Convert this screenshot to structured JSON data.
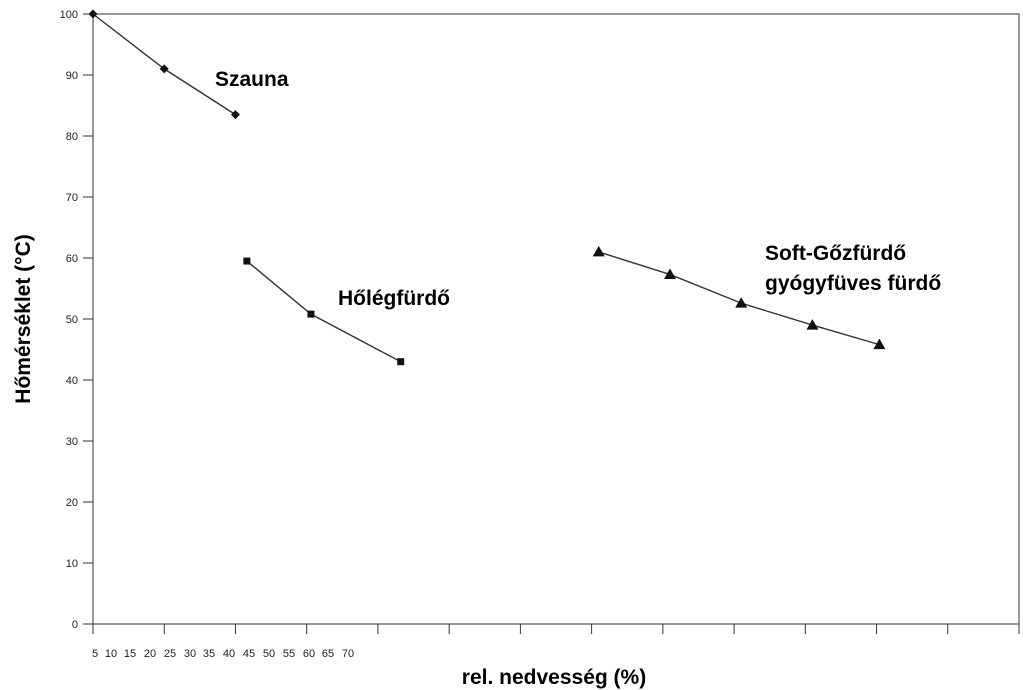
{
  "chart_data": {
    "type": "line",
    "title": "",
    "xlabel": "rel. nedvesség (%)",
    "ylabel": "Hőmérséklet (°C)",
    "xlim": [
      5,
      70
    ],
    "ylim": [
      0,
      100
    ],
    "y_ticks": [
      0,
      10,
      20,
      30,
      40,
      50,
      60,
      70,
      80,
      90,
      100
    ],
    "x_tick_labels": [
      "5",
      "10",
      "15",
      "20",
      "25",
      "30",
      "35",
      "40",
      "45",
      "50",
      "55",
      "60",
      "65",
      "70"
    ],
    "grid": false,
    "legend": "none",
    "series": [
      {
        "name": "Szauna",
        "label_lines": [
          "Szauna"
        ],
        "marker": "diamond",
        "points": [
          [
            5,
            100
          ],
          [
            10,
            91
          ],
          [
            15,
            83.5
          ]
        ]
      },
      {
        "name": "Hőlégfürdő",
        "label_lines": [
          "Hőlégfürdő"
        ],
        "marker": "square",
        "points": [
          [
            15.8,
            59.5
          ],
          [
            20.3,
            50.8
          ],
          [
            26.6,
            43
          ]
        ]
      },
      {
        "name": "Soft-Gőzfürdő gyógyfüves fürdő",
        "label_lines": [
          "Soft-Gőzfürdő",
          "gyógyfüves fürdő"
        ],
        "marker": "triangle",
        "points": [
          [
            40.5,
            61
          ],
          [
            45.5,
            57.3
          ],
          [
            50.5,
            52.6
          ],
          [
            55.5,
            49
          ],
          [
            60.2,
            45.8
          ]
        ]
      }
    ],
    "colors": {
      "line": "#333333",
      "marker": "#111111",
      "axis": "#333333"
    }
  }
}
